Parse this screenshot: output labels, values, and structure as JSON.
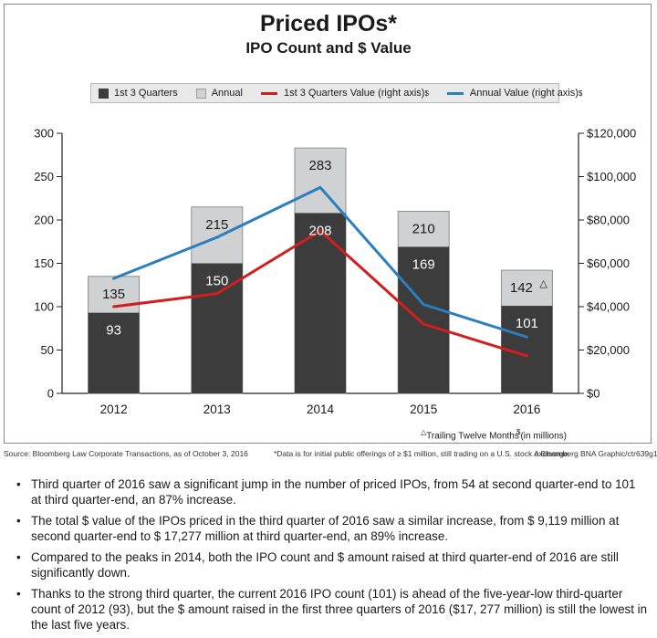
{
  "chart_data": {
    "type": "bar",
    "title": "Priced IPOs*",
    "subtitle": "IPO Count and $ Value",
    "categories": [
      "2012",
      "2013",
      "2014",
      "2015",
      "2016"
    ],
    "series": [
      {
        "name": "1st 3 Quarters",
        "kind": "bar",
        "axis": "left",
        "values": [
          93,
          150,
          208,
          169,
          101
        ]
      },
      {
        "name": "Annual",
        "kind": "bar",
        "axis": "left",
        "values": [
          135,
          215,
          283,
          210,
          142
        ]
      },
      {
        "name": "1st 3 Quarters Value  (right axis)",
        "kind": "line",
        "axis": "right",
        "values": [
          40000,
          46000,
          75000,
          32000,
          17277
        ]
      },
      {
        "name": "Annual Value (right axis)",
        "kind": "line",
        "axis": "right",
        "values": [
          53000,
          72000,
          95000,
          41000,
          26000
        ]
      }
    ],
    "bar_labels_quarters": [
      "93",
      "150",
      "208",
      "169",
      "101"
    ],
    "bar_labels_annual": [
      "135",
      "215",
      "283",
      "210",
      "142"
    ],
    "left_axis": {
      "range": [
        0,
        300
      ],
      "ticks": [
        "0",
        "50",
        "100",
        "150",
        "200",
        "250",
        "300"
      ]
    },
    "right_axis": {
      "range": [
        0,
        120000
      ],
      "ticks": [
        "$0",
        "$20,000",
        "$40,000",
        "$60,000",
        "$80,000",
        "$100,000",
        "$120,000"
      ]
    },
    "grid": false,
    "legend_position": "top",
    "annotations": {
      "ttm_marker": "△",
      "ttm_note": "Trailing Twelve Months",
      "millions_marker": "$",
      "millions_note": "(in millions)"
    },
    "colors": {
      "quarters_bar": "#3c3c3c",
      "annual_bar": "#cfd1d3",
      "quarters_line": "#d11f1f",
      "annual_line": "#2a7fc0"
    }
  },
  "legend": {
    "quarters": "1st 3 Quarters",
    "annual": "Annual",
    "quarters_value": "1st 3 Quarters Value  (right axis)",
    "annual_value": "Annual Value (right axis)",
    "sup": "$"
  },
  "footer": {
    "source": "Source: Bloomberg Law Corporate Transactions, as of October 3, 2016",
    "data_note": "*Data is for initial public offerings of ≥ $1 million, still trading on a U.S. stock exchange.",
    "credit": "A Bloomberg BNA Graphic/ctr639g1"
  },
  "bullets": [
    "Third quarter of 2016 saw a significant jump in the number of priced IPOs, from 54 at second quarter-end to 101 at third quarter-end, an 87% increase.",
    "The total $ value of the IPOs priced in the third quarter of 2016 saw a similar increase, from $ 9,119 million at second quarter-end to $ 17,277 million at third quarter-end, an 89% increase.",
    "Compared to the peaks in 2014, both the IPO count and $ amount raised at third quarter-end of 2016 are still significantly down.",
    "Thanks to the strong third quarter, the current 2016 IPO count (101) is ahead of the five-year-low third-quarter count of 2012 (93), but the $ amount raised in the first three quarters of 2016 ($17, 277 million) is still the lowest in the last five years."
  ],
  "bullet_glyph": "•"
}
